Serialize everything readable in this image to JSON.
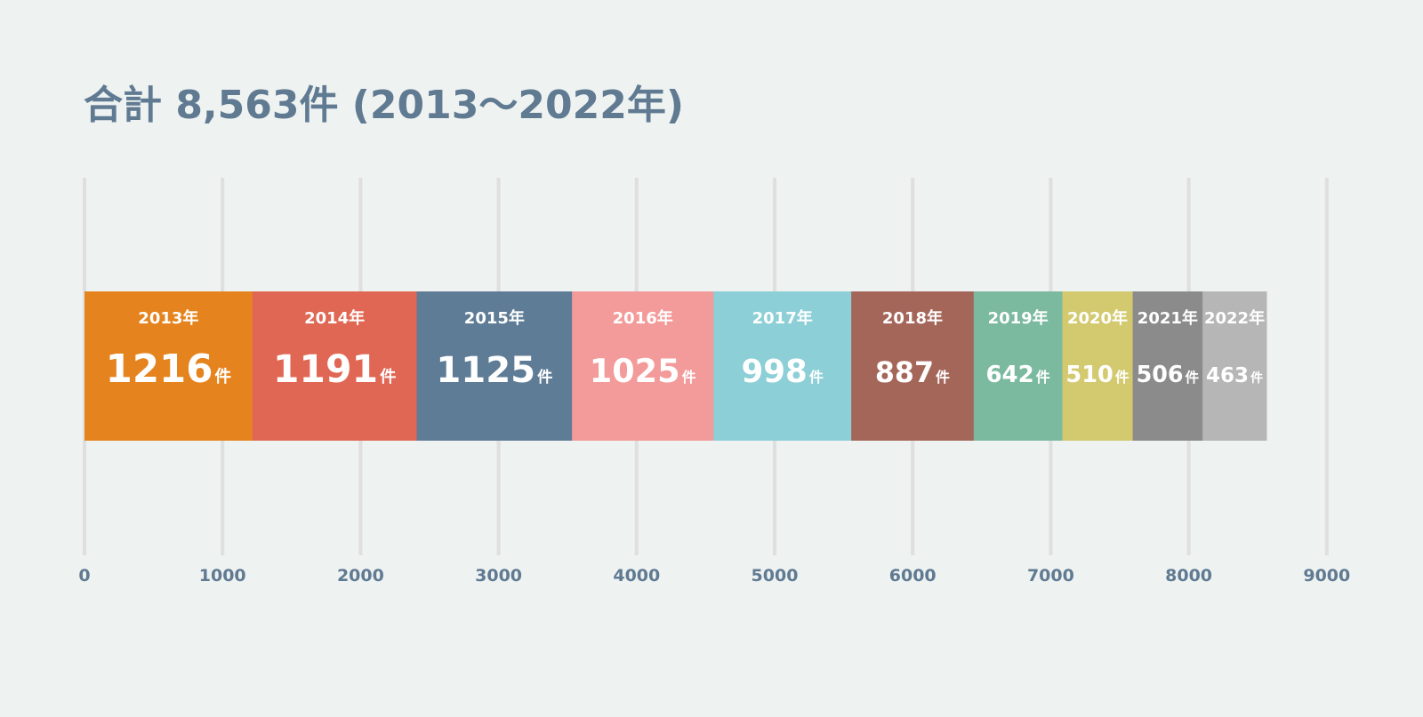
{
  "chart_data": {
    "type": "bar",
    "orientation": "horizontal-stacked",
    "title": "合計 8,563件 (2013～2022年)",
    "categories": [
      "2013年",
      "2014年",
      "2015年",
      "2016年",
      "2017年",
      "2018年",
      "2019年",
      "2020年",
      "2021年",
      "2022年"
    ],
    "values": [
      1216,
      1191,
      1125,
      1025,
      998,
      887,
      642,
      510,
      506,
      463
    ],
    "value_suffix": "件",
    "colors": [
      "#e5841f",
      "#e06754",
      "#5f7c96",
      "#f39b9a",
      "#8ccfd6",
      "#a5665a",
      "#7bba9f",
      "#d3c96f",
      "#8b8b8b",
      "#b5b6b5"
    ],
    "xlim": [
      0,
      9000
    ],
    "x_ticks": [
      0,
      1000,
      2000,
      3000,
      4000,
      5000,
      6000,
      7000,
      8000,
      9000
    ],
    "grid": true,
    "xlabel": "",
    "ylabel": ""
  }
}
